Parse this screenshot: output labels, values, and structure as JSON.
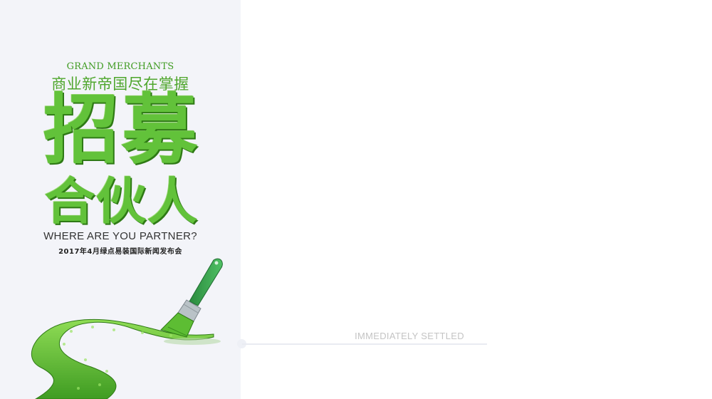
{
  "poster": {
    "subtitle_en": "GRAND MERCHANTS",
    "subtitle_cn": "商业新帝国尽在掌握",
    "headline_line1": "招募",
    "headline_line2": "合伙人",
    "tagline": "WHERE ARE YOU PARTNER?",
    "event": "2017年4月绿点易装国际新闻发布会"
  },
  "right": {
    "caption": "IMMEDIATELY SETTLED"
  },
  "colors": {
    "grass": "#5cbf35",
    "grass_dark": "#2f7a16",
    "panel_bg": "#f3f4f9",
    "brush_handle": "#2f9a4a"
  },
  "icons": {
    "brush": "paint-brush-icon",
    "path": "grass-path"
  }
}
